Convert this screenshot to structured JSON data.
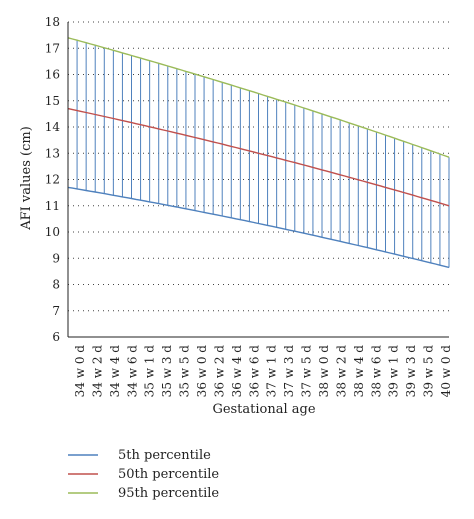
{
  "chart_data": {
    "type": "line",
    "title": "",
    "xlabel": "Gestational age",
    "ylabel": "AFI values (cm)",
    "ylim": [
      6,
      18
    ],
    "yticks": [
      6,
      7,
      8,
      9,
      10,
      11,
      12,
      13,
      14,
      15,
      16,
      17,
      18
    ],
    "grid": "horizontal dotted",
    "legend_position": "bottom",
    "x_tick_labels": [
      "34 w 0 d",
      "34 w 2 d",
      "34 w 4 d",
      "34 w 6 d",
      "35 w 1 d",
      "35 w 3 d",
      "35 w 5 d",
      "36 w 0 d",
      "36 w 2 d",
      "36 w 4 d",
      "36 w 6 d",
      "37 w 1 d",
      "37 w 3 d",
      "37 w 5 d",
      "38 w 0 d",
      "38 w 2 d",
      "38 w 4 d",
      "38 w 6 d",
      "39 w 1 d",
      "39 w 3 d",
      "39 w 5 d",
      "40 w 0 d"
    ],
    "x_day_range": [
      238,
      280
    ],
    "series": [
      {
        "name": "5th percentile",
        "color": "#4f81bd",
        "start": 11.7,
        "end": 8.65,
        "curve": 0.6
      },
      {
        "name": "50th percentile",
        "color": "#c0504d",
        "start": 14.7,
        "end": 11.0,
        "curve": 0.6
      },
      {
        "name": "95th percentile",
        "color": "#9bbb59",
        "start": 17.4,
        "end": 12.85,
        "curve": 0.6
      }
    ],
    "vertical_lines": {
      "from_series": "5th percentile",
      "to_series": "95th percentile",
      "every_days": 1,
      "color": "#4f81bd"
    }
  }
}
